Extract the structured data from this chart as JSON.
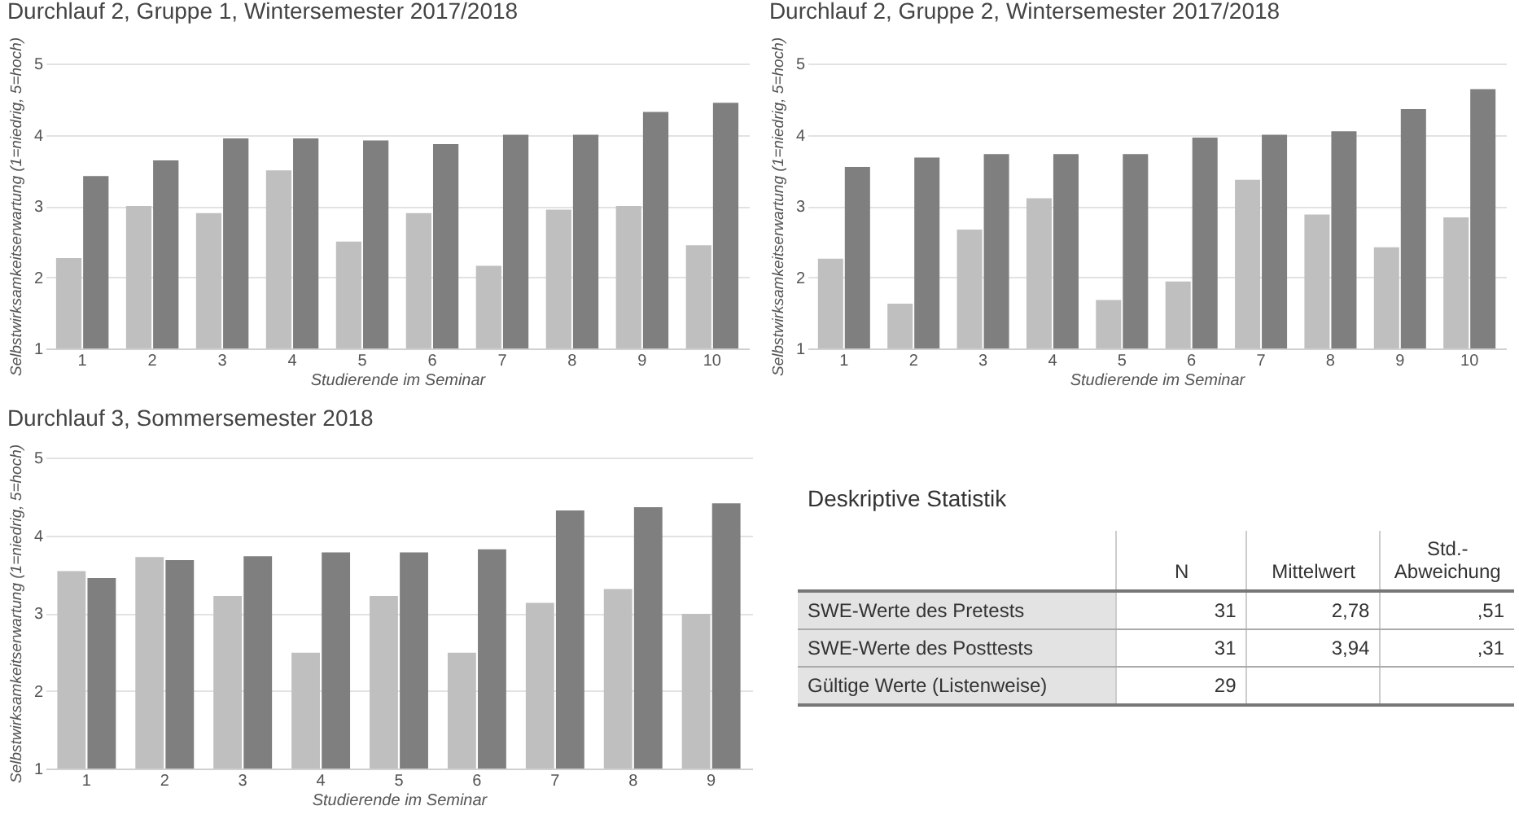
{
  "chart_data": [
    {
      "type": "bar",
      "title": "Durchlauf 2, Gruppe 1, Wintersemester 2017/2018",
      "xlabel": "Studierende im Seminar",
      "ylabel": "Selbstwirksamkeitserwartung (1=niedrig, 5=hoch)",
      "categories": [
        "1",
        "2",
        "3",
        "4",
        "5",
        "6",
        "7",
        "8",
        "9",
        "10"
      ],
      "series": [
        {
          "color": "#bfbfbf",
          "values": [
            2.27,
            3.0,
            2.9,
            3.5,
            2.5,
            2.9,
            2.16,
            2.95,
            3.0,
            2.45
          ]
        },
        {
          "color": "#7f7f7f",
          "values": [
            3.42,
            3.64,
            3.95,
            3.95,
            3.92,
            3.87,
            4.0,
            4.0,
            4.32,
            4.45
          ]
        }
      ],
      "ylim": [
        1,
        5
      ],
      "yticks": [
        1,
        2,
        3,
        4,
        5
      ],
      "grid": "y"
    },
    {
      "type": "bar",
      "title": "Durchlauf 2, Gruppe 2, Wintersemester 2017/2018",
      "xlabel": "Studierende im Seminar",
      "ylabel": "Selbstwirksamkeitserwartung (1=niedrig, 5=hoch)",
      "categories": [
        "1",
        "2",
        "3",
        "4",
        "5",
        "6",
        "7",
        "8",
        "9",
        "10"
      ],
      "series": [
        {
          "color": "#bfbfbf",
          "values": [
            2.26,
            1.63,
            2.67,
            3.11,
            1.68,
            1.94,
            3.37,
            2.88,
            2.42,
            2.84
          ]
        },
        {
          "color": "#7f7f7f",
          "values": [
            3.55,
            3.68,
            3.73,
            3.73,
            3.73,
            3.96,
            4.0,
            4.05,
            4.36,
            4.64
          ]
        }
      ],
      "ylim": [
        1,
        5
      ],
      "yticks": [
        1,
        2,
        3,
        4,
        5
      ],
      "grid": "y"
    },
    {
      "type": "bar",
      "title": "Durchlauf 3, Sommersemester 2018",
      "xlabel": "Studierende im Seminar",
      "ylabel": "Selbstwirksamkeitserwartung (1=niedrig, 5=hoch)",
      "categories": [
        "1",
        "2",
        "3",
        "4",
        "5",
        "6",
        "7",
        "8",
        "9"
      ],
      "series": [
        {
          "color": "#bfbfbf",
          "values": [
            3.54,
            3.72,
            3.22,
            2.49,
            3.22,
            2.49,
            3.13,
            3.31,
            2.99
          ]
        },
        {
          "color": "#7f7f7f",
          "values": [
            3.45,
            3.68,
            3.73,
            3.78,
            3.78,
            3.82,
            4.32,
            4.36,
            4.41
          ]
        }
      ],
      "ylim": [
        1,
        5
      ],
      "yticks": [
        1,
        2,
        3,
        4,
        5
      ],
      "grid": "y"
    },
    {
      "type": "other",
      "title": "Deskriptive Statistik",
      "categories": [
        "N",
        "Mittelwert",
        "Std.-Abweichung"
      ],
      "y_categories": [
        "SWE-Werte des Pretests",
        "SWE-Werte des Posttests",
        "Gültige Werte (Listenweise)"
      ],
      "cell_labels": [
        [
          "31",
          "2,78",
          ",51"
        ],
        [
          "31",
          "3,94",
          ",31"
        ],
        [
          "29",
          null,
          null
        ]
      ]
    }
  ]
}
